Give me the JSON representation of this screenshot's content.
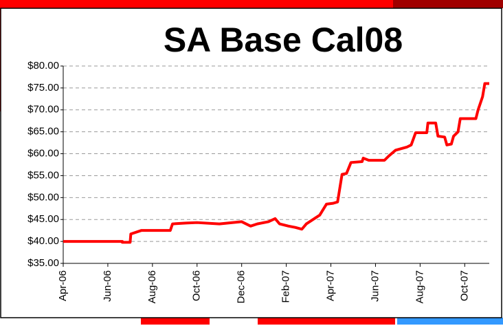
{
  "chart_data": {
    "type": "line",
    "title": "SA Base Cal08",
    "x": [
      0,
      2.65,
      2.65,
      3.0,
      3.03,
      3.5,
      4.8,
      4.9,
      5.5,
      6.0,
      7.0,
      8.0,
      8.4,
      8.7,
      9.2,
      9.5,
      9.7,
      10.1,
      10.4,
      10.7,
      10.9,
      11.2,
      11.5,
      11.8,
      12.1,
      12.3,
      12.5,
      12.7,
      12.9,
      13.4,
      13.45,
      13.7,
      14.4,
      14.6,
      14.9,
      15.4,
      15.6,
      15.8,
      16.3,
      16.35,
      16.7,
      16.8,
      17.1,
      17.2,
      17.4,
      17.5,
      17.7,
      17.8,
      18.5,
      18.6,
      18.8,
      18.9,
      19.1
    ],
    "values": [
      40,
      40,
      39.8,
      39.8,
      41.7,
      42.5,
      42.5,
      44,
      44.2,
      44.3,
      44,
      44.5,
      43.5,
      44,
      44.5,
      45.2,
      44,
      43.5,
      43.2,
      42.8,
      44,
      45,
      46,
      48.5,
      48.7,
      49,
      55.3,
      55.5,
      58,
      58.2,
      59,
      58.5,
      58.5,
      59.5,
      60.8,
      61.5,
      62,
      64.8,
      64.8,
      67,
      67,
      64,
      63.8,
      62,
      62.2,
      64,
      65,
      68,
      68,
      70,
      73,
      76,
      76
    ],
    "color": "#ff0000",
    "xlim": [
      0,
      19.1
    ],
    "xticks": [
      {
        "value": 0,
        "label": "Apr-06"
      },
      {
        "value": 2,
        "label": "Jun-06"
      },
      {
        "value": 4,
        "label": "Aug-06"
      },
      {
        "value": 6,
        "label": "Oct-06"
      },
      {
        "value": 8,
        "label": "Dec-06"
      },
      {
        "value": 10,
        "label": "Feb-07"
      },
      {
        "value": 12,
        "label": "Apr-07"
      },
      {
        "value": 14,
        "label": "Jun-07"
      },
      {
        "value": 16,
        "label": "Aug-07"
      },
      {
        "value": 18,
        "label": "Oct-07"
      }
    ],
    "ylim": [
      35,
      80
    ],
    "yticks": [
      {
        "value": 35,
        "label": "$35.00"
      },
      {
        "value": 40,
        "label": "$40.00"
      },
      {
        "value": 45,
        "label": "$45.00"
      },
      {
        "value": 50,
        "label": "$50.00"
      },
      {
        "value": 55,
        "label": "$55.00"
      },
      {
        "value": 60,
        "label": "$60.00"
      },
      {
        "value": 65,
        "label": "$65.00"
      },
      {
        "value": 70,
        "label": "$70.00"
      },
      {
        "value": 75,
        "label": "$75.00"
      },
      {
        "value": 80,
        "label": "$80.00"
      }
    ],
    "grid": true
  }
}
